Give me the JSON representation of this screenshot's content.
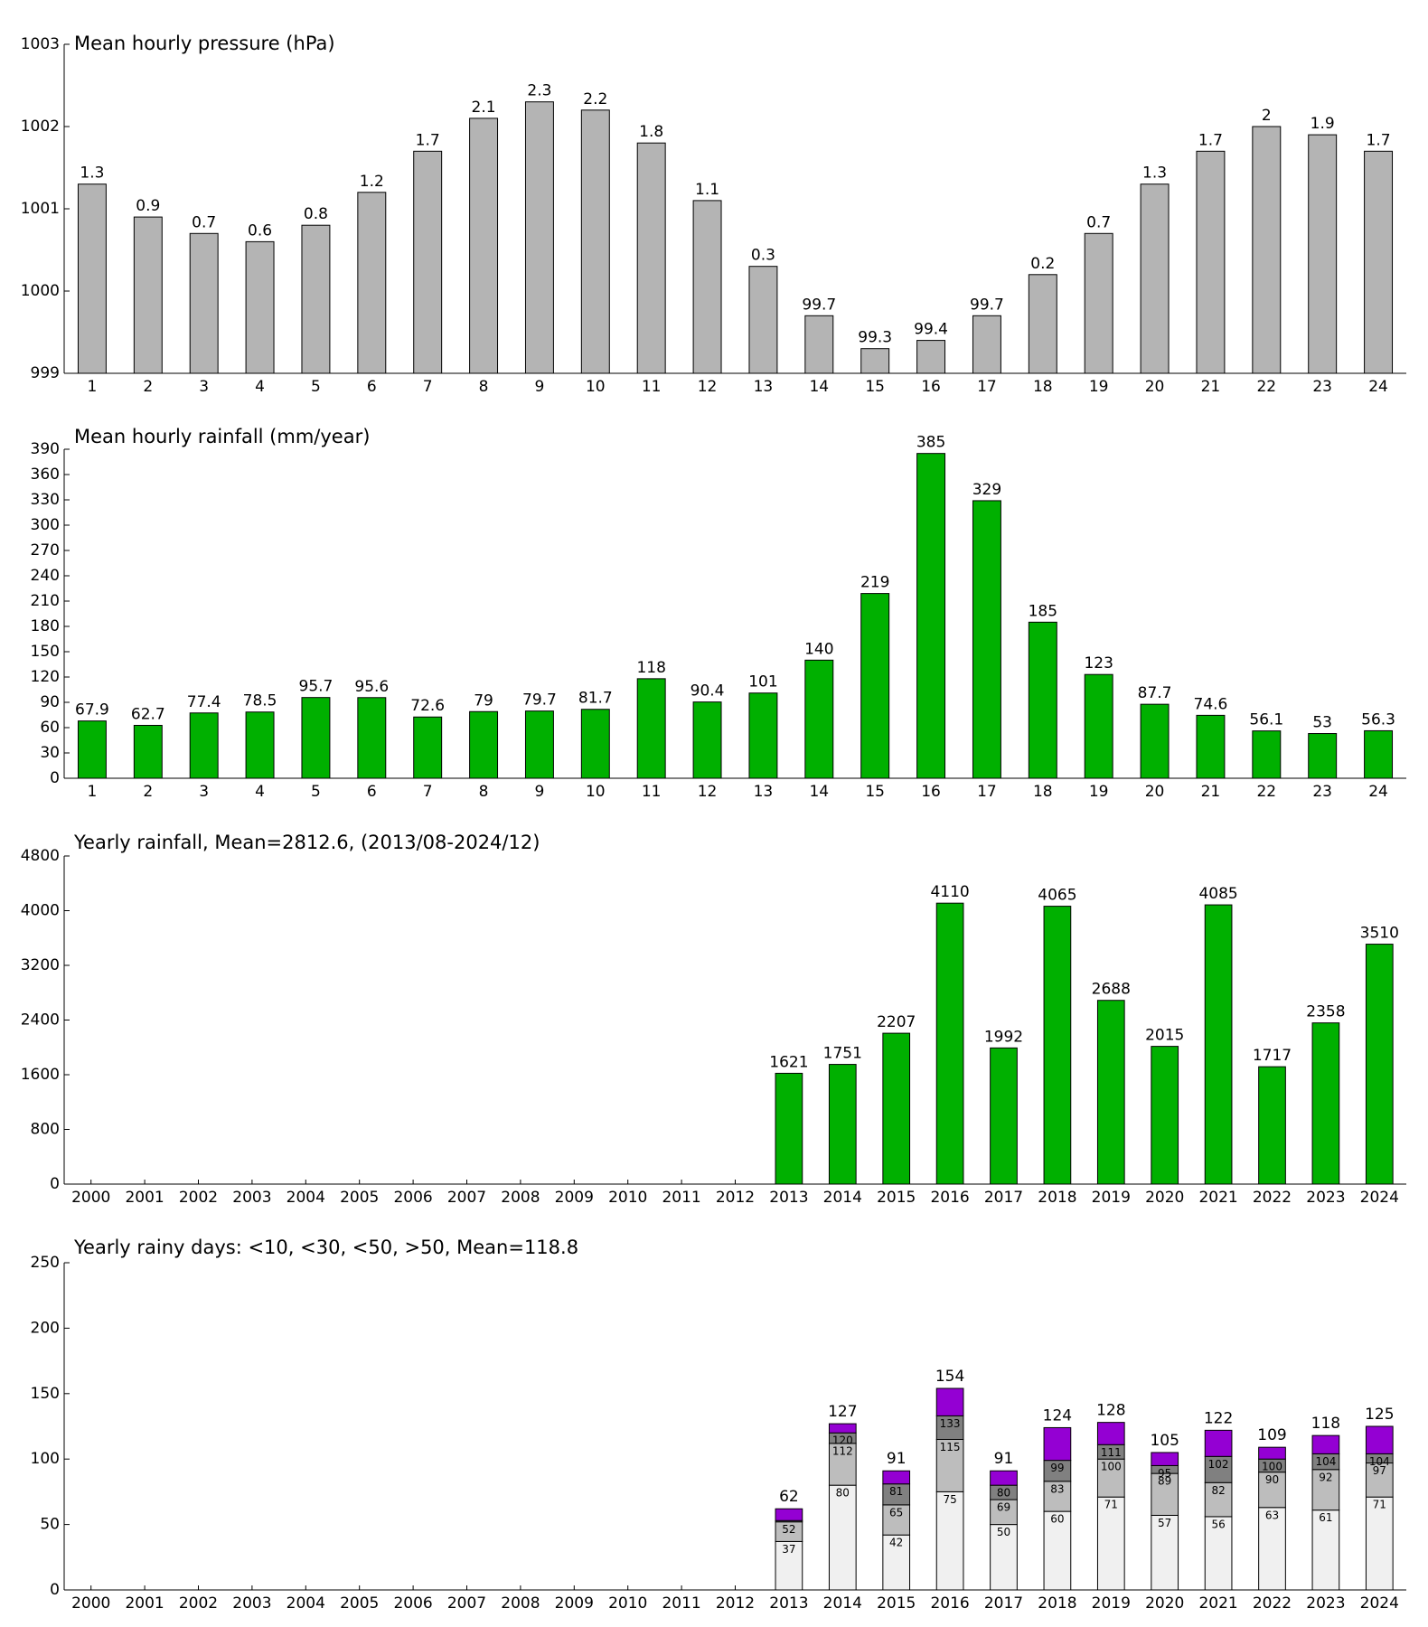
{
  "chart_data": [
    {
      "type": "bar",
      "title": "Mean hourly pressure (hPa)",
      "color": "#b4b4b4",
      "categories": [
        "1",
        "2",
        "3",
        "4",
        "5",
        "6",
        "7",
        "8",
        "9",
        "10",
        "11",
        "12",
        "13",
        "14",
        "15",
        "16",
        "17",
        "18",
        "19",
        "20",
        "21",
        "22",
        "23",
        "24"
      ],
      "values": [
        1001.3,
        1000.9,
        1000.7,
        1000.6,
        1000.8,
        1001.2,
        1001.7,
        1002.1,
        1002.3,
        1002.2,
        1001.8,
        1001.1,
        1000.3,
        999.7,
        999.3,
        999.4,
        999.7,
        1000.2,
        1000.7,
        1001.3,
        1001.7,
        1002.0,
        1001.9,
        1001.7
      ],
      "value_labels": [
        "1.3",
        "0.9",
        "0.7",
        "0.6",
        "0.8",
        "1.2",
        "1.7",
        "2.1",
        "2.3",
        "2.2",
        "1.8",
        "1.1",
        "0.3",
        "99.7",
        "99.3",
        "99.4",
        "99.7",
        "0.2",
        "0.7",
        "1.3",
        "1.7",
        "2",
        "1.9",
        "1.7"
      ],
      "ylim": [
        999,
        1003
      ],
      "yticks": [
        999,
        1000,
        1001,
        1002,
        1003
      ]
    },
    {
      "type": "bar",
      "title": "Mean hourly rainfall (mm/year)",
      "color": "#00b000",
      "categories": [
        "1",
        "2",
        "3",
        "4",
        "5",
        "6",
        "7",
        "8",
        "9",
        "10",
        "11",
        "12",
        "13",
        "14",
        "15",
        "16",
        "17",
        "18",
        "19",
        "20",
        "21",
        "22",
        "23",
        "24"
      ],
      "values": [
        67.9,
        62.7,
        77.4,
        78.5,
        95.7,
        95.6,
        72.6,
        79,
        79.7,
        81.7,
        118,
        90.4,
        101,
        140,
        219,
        385,
        329,
        185,
        123,
        87.7,
        74.6,
        56.1,
        53,
        56.3
      ],
      "ylim": [
        0,
        390
      ],
      "yticks": [
        0,
        30,
        60,
        90,
        120,
        150,
        180,
        210,
        240,
        270,
        300,
        330,
        360,
        390
      ]
    },
    {
      "type": "bar",
      "title": "Yearly rainfall, Mean=2812.6, (2013/08-2024/12)",
      "color": "#00b000",
      "categories": [
        "2000",
        "2001",
        "2002",
        "2003",
        "2004",
        "2005",
        "2006",
        "2007",
        "2008",
        "2009",
        "2010",
        "2011",
        "2012",
        "2013",
        "2014",
        "2015",
        "2016",
        "2017",
        "2018",
        "2019",
        "2020",
        "2021",
        "2022",
        "2023",
        "2024"
      ],
      "values": [
        null,
        null,
        null,
        null,
        null,
        null,
        null,
        null,
        null,
        null,
        null,
        null,
        null,
        1621,
        1751,
        2207,
        4110,
        1992,
        4065,
        2688,
        2015,
        4085,
        1717,
        2358,
        3510
      ],
      "ylim": [
        0,
        4800
      ],
      "yticks": [
        0,
        800,
        1600,
        2400,
        3200,
        4000,
        4800
      ]
    },
    {
      "type": "stacked_bar",
      "title": "Yearly rainy days: <10, <30, <50, >50, Mean=118.8",
      "categories": [
        "2000",
        "2001",
        "2002",
        "2003",
        "2004",
        "2005",
        "2006",
        "2007",
        "2008",
        "2009",
        "2010",
        "2011",
        "2012",
        "2013",
        "2014",
        "2015",
        "2016",
        "2017",
        "2018",
        "2019",
        "2020",
        "2021",
        "2022",
        "2023",
        "2024"
      ],
      "series": [
        {
          "color": "#f0f0f0",
          "values": [
            null,
            null,
            null,
            null,
            null,
            null,
            null,
            null,
            null,
            null,
            null,
            null,
            null,
            37,
            80,
            42,
            75,
            50,
            60,
            71,
            57,
            56,
            63,
            61,
            71
          ]
        },
        {
          "color": "#bdbdbd",
          "values": [
            null,
            null,
            null,
            null,
            null,
            null,
            null,
            null,
            null,
            null,
            null,
            null,
            null,
            15,
            32,
            23,
            40,
            19,
            23,
            29,
            32,
            26,
            27,
            31,
            26
          ]
        },
        {
          "color": "#808080",
          "values": [
            null,
            null,
            null,
            null,
            null,
            null,
            null,
            null,
            null,
            null,
            null,
            null,
            null,
            1,
            8,
            16,
            18,
            11,
            16,
            11,
            6,
            20,
            10,
            12,
            7
          ]
        },
        {
          "color": "#9400d3",
          "values": [
            null,
            null,
            null,
            null,
            null,
            null,
            null,
            null,
            null,
            null,
            null,
            null,
            null,
            9,
            7,
            10,
            21,
            11,
            25,
            17,
            10,
            20,
            9,
            14,
            21
          ]
        }
      ],
      "stack_labels": [
        null,
        null,
        null,
        null,
        null,
        null,
        null,
        null,
        null,
        null,
        null,
        null,
        null,
        [
          37,
          52,
          62
        ],
        [
          80,
          112,
          120,
          127
        ],
        [
          42,
          65,
          81,
          91
        ],
        [
          75,
          115,
          133,
          154
        ],
        [
          50,
          69,
          80,
          91
        ],
        [
          60,
          83,
          99,
          124
        ],
        [
          71,
          100,
          111,
          128
        ],
        [
          57,
          89,
          95,
          105
        ],
        [
          56,
          82,
          102,
          122
        ],
        [
          63,
          90,
          100,
          109
        ],
        [
          61,
          92,
          104,
          118
        ],
        [
          71,
          97,
          104,
          125
        ]
      ],
      "ylim": [
        0,
        250
      ],
      "yticks": [
        0,
        50,
        100,
        150,
        200,
        250
      ]
    }
  ]
}
